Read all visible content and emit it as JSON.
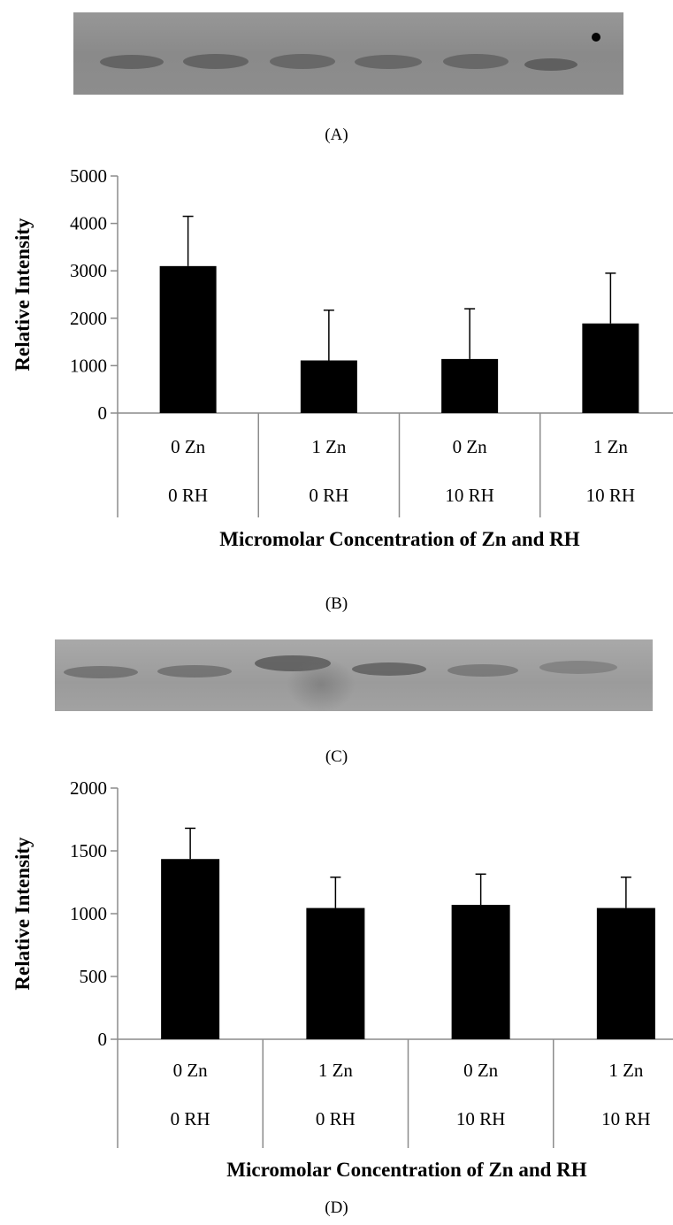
{
  "panels": {
    "a_label": "(A)",
    "b_label": "(B)",
    "c_label": "(C)",
    "d_label": "(D)"
  },
  "chart_data": [
    {
      "type": "bar",
      "categories": [
        [
          "0 Zn",
          "0 RH"
        ],
        [
          "1 Zn",
          "0 RH"
        ],
        [
          "0 Zn",
          "10 RH"
        ],
        [
          "1 Zn",
          "10 RH"
        ]
      ],
      "values": [
        3100,
        1110,
        1140,
        1890
      ],
      "errors": [
        1050,
        1060,
        1060,
        1060
      ],
      "title": "",
      "xlabel": "Micromolar Concentration of Zn and RH",
      "ylabel": "Relative  Intensity",
      "ylim": [
        0,
        5000
      ],
      "yticks": [
        0,
        1000,
        2000,
        3000,
        4000,
        5000
      ],
      "bar_color": "#000000",
      "grid": false
    },
    {
      "type": "bar",
      "categories": [
        [
          "0 Zn",
          "0 RH"
        ],
        [
          "1 Zn",
          "0 RH"
        ],
        [
          "0 Zn",
          "10 RH"
        ],
        [
          "1 Zn",
          "10 RH"
        ]
      ],
      "values": [
        1435,
        1045,
        1070,
        1045
      ],
      "errors": [
        245,
        245,
        245,
        245
      ],
      "title": "",
      "xlabel": "Micromolar Concentration of Zn and RH",
      "ylabel": "Relative Intensity",
      "ylim": [
        0,
        2000
      ],
      "yticks": [
        0,
        500,
        1000,
        1500,
        2000
      ],
      "bar_color": "#000000",
      "grid": false
    }
  ]
}
